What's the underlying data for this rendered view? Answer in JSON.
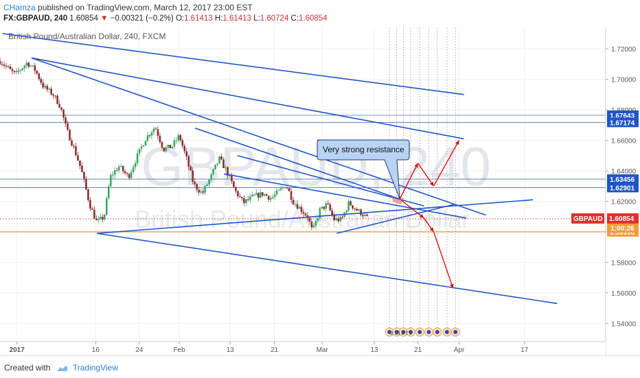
{
  "header": {
    "author": "CHamza",
    "published_text": "published on TradingView.com, March 12, 2017 23:00 EST",
    "symbol": "FX:GBPAUD, 240",
    "last": "1.60854",
    "change": "−0.00321 (−0.2%)",
    "open_label": "O:",
    "open": "1.61413",
    "high_label": "H:",
    "high": "1.61413",
    "low_label": "L:",
    "low": "1.60724",
    "close_label": "C:",
    "close": "1.60854"
  },
  "footer": {
    "created_with": "Created with",
    "brand": "TradingView"
  },
  "chart_data": {
    "type": "candlestick",
    "title": "British Pound/Australian Dollar, 240, FXCM",
    "watermark_symbol": "GBPAUD, 240",
    "watermark_name": "British Pound/Australian Dollar",
    "y_range": [
      1.528,
      1.734
    ],
    "y_ticks": [
      "1.72000",
      "1.70000",
      "1.68000",
      "1.66000",
      "1.64000",
      "1.62000",
      "1.60000",
      "1.58000",
      "1.56000",
      "1.54000"
    ],
    "x_ticks": [
      "2017",
      "16",
      "24",
      "Feb",
      "13",
      "21",
      "Mar",
      "13",
      "21",
      "Apr",
      "17"
    ],
    "x_tick_positions": [
      0.028,
      0.158,
      0.23,
      0.296,
      0.38,
      0.453,
      0.532,
      0.618,
      0.69,
      0.758,
      0.866
    ],
    "price_axis_labels": [
      {
        "text": "1.67643",
        "price": 1.67643,
        "kind": "level"
      },
      {
        "text": "1.67174",
        "price": 1.67174,
        "kind": "level"
      },
      {
        "text": "1.63456",
        "price": 1.63456,
        "kind": "level"
      },
      {
        "text": "1.62901",
        "price": 1.62901,
        "kind": "level"
      },
      {
        "text": "1.59998",
        "price": 1.59998,
        "kind": "orange"
      }
    ],
    "current_price": {
      "symbol": "GBPAUD",
      "text": "1.60854",
      "price": 1.60854,
      "countdown": "1:00:26"
    },
    "horizontal_levels": [
      1.67643,
      1.67174,
      1.63456,
      1.62901
    ],
    "support_level": 1.59998,
    "annotation": {
      "text": "Very strong resistance",
      "target_price": 1.6215
    },
    "candle_path": [
      [
        0.0,
        1.712
      ],
      [
        0.025,
        1.703
      ],
      [
        0.045,
        1.711
      ],
      [
        0.058,
        1.706
      ],
      [
        0.072,
        1.695
      ],
      [
        0.088,
        1.69
      ],
      [
        0.1,
        1.682
      ],
      [
        0.11,
        1.667
      ],
      [
        0.122,
        1.655
      ],
      [
        0.134,
        1.641
      ],
      [
        0.148,
        1.618
      ],
      [
        0.16,
        1.606
      ],
      [
        0.172,
        1.61
      ],
      [
        0.182,
        1.636
      ],
      [
        0.196,
        1.643
      ],
      [
        0.212,
        1.636
      ],
      [
        0.226,
        1.649
      ],
      [
        0.24,
        1.661
      ],
      [
        0.256,
        1.669
      ],
      [
        0.27,
        1.654
      ],
      [
        0.284,
        1.656
      ],
      [
        0.296,
        1.663
      ],
      [
        0.308,
        1.648
      ],
      [
        0.32,
        1.631
      ],
      [
        0.334,
        1.625
      ],
      [
        0.348,
        1.636
      ],
      [
        0.362,
        1.648
      ],
      [
        0.374,
        1.64
      ],
      [
        0.388,
        1.627
      ],
      [
        0.402,
        1.619
      ],
      [
        0.418,
        1.623
      ],
      [
        0.434,
        1.625
      ],
      [
        0.448,
        1.622
      ],
      [
        0.462,
        1.627
      ],
      [
        0.472,
        1.631
      ],
      [
        0.484,
        1.62
      ],
      [
        0.496,
        1.615
      ],
      [
        0.508,
        1.61
      ],
      [
        0.516,
        1.6
      ],
      [
        0.528,
        1.614
      ],
      [
        0.54,
        1.618
      ],
      [
        0.552,
        1.608
      ],
      [
        0.564,
        1.608
      ],
      [
        0.576,
        1.619
      ],
      [
        0.59,
        1.614
      ],
      [
        0.598,
        1.612
      ],
      [
        0.606,
        1.609
      ]
    ],
    "trendlines": [
      {
        "role": "outer-upper-channel",
        "from": [
          0.004,
          1.73
        ],
        "to": [
          0.766,
          1.69
        ]
      },
      {
        "role": "upper-channel",
        "from": [
          0.052,
          1.714
        ],
        "to": [
          0.766,
          1.661
        ]
      },
      {
        "role": "descending-resistance",
        "from": [
          0.052,
          1.714
        ],
        "to": [
          0.802,
          1.611
        ]
      },
      {
        "role": "resistance",
        "from": [
          0.322,
          1.668
        ],
        "to": [
          0.66,
          1.6215
        ]
      },
      {
        "role": "resistance",
        "from": [
          0.392,
          1.65
        ],
        "to": [
          0.7,
          1.617
        ]
      },
      {
        "role": "lower-triangle",
        "from": [
          0.37,
          1.638
        ],
        "to": [
          0.77,
          1.609
        ]
      },
      {
        "role": "ascending-support",
        "from": [
          0.16,
          1.599
        ],
        "to": [
          0.88,
          1.621
        ]
      },
      {
        "role": "ascending-support",
        "from": [
          0.556,
          1.599
        ],
        "to": [
          0.75,
          1.618
        ]
      },
      {
        "role": "lower-channel",
        "from": [
          0.16,
          1.599
        ],
        "to": [
          0.92,
          1.553
        ]
      }
    ],
    "projection_arrows": [
      [
        [
          0.66,
          1.6215
        ],
        [
          0.69,
          1.645
        ]
      ],
      [
        [
          0.69,
          1.645
        ],
        [
          0.716,
          1.63
        ]
      ],
      [
        [
          0.716,
          1.63
        ],
        [
          0.758,
          1.66
        ]
      ],
      [
        [
          0.66,
          1.6215
        ],
        [
          0.7,
          1.609
        ]
      ],
      [
        [
          0.7,
          1.609
        ],
        [
          0.716,
          1.6
        ]
      ],
      [
        [
          0.716,
          1.6
        ],
        [
          0.748,
          1.563
        ]
      ]
    ],
    "event_markers": {
      "text": "2 13 2 7 2",
      "positions": [
        0.643,
        0.655,
        0.666,
        0.678,
        0.693,
        0.708,
        0.722,
        0.738,
        0.752
      ]
    }
  }
}
